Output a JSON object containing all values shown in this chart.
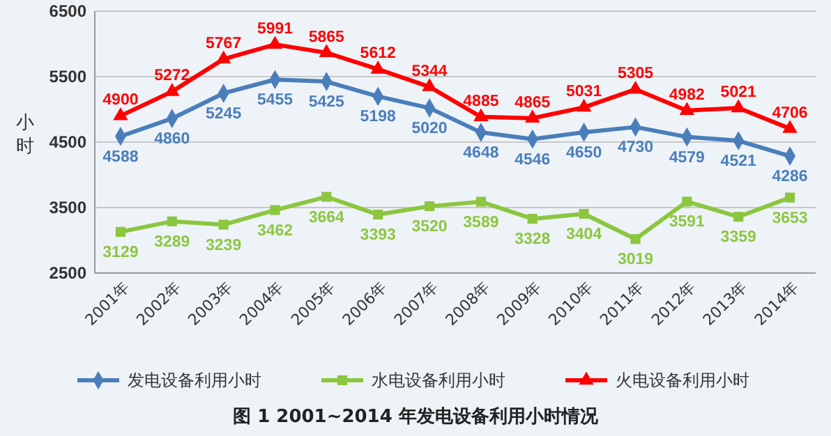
{
  "chart_data": {
    "type": "line",
    "title": "图 1  2001~2014 年发电设备利用小时情况",
    "ylabel": "小时",
    "categories": [
      "2001年",
      "2002年",
      "2003年",
      "2004年",
      "2005年",
      "2006年",
      "2007年",
      "2008年",
      "2009年",
      "2010年",
      "2011年",
      "2012年",
      "2013年",
      "2014年"
    ],
    "series": [
      {
        "name": "发电设备利用小时",
        "color": "#4a7ebb",
        "marker": "diamond",
        "values": [
          4588,
          4860,
          5245,
          5455,
          5425,
          5198,
          5020,
          4648,
          4546,
          4650,
          4730,
          4579,
          4521,
          4286
        ]
      },
      {
        "name": "水电设备利用小时",
        "color": "#8cc63f",
        "marker": "square",
        "values": [
          3129,
          3289,
          3239,
          3462,
          3664,
          3393,
          3520,
          3589,
          3328,
          3404,
          3019,
          3591,
          3359,
          3653
        ]
      },
      {
        "name": "火电设备利用小时",
        "color": "#ff0000",
        "marker": "triangle",
        "values": [
          4900,
          5272,
          5767,
          5991,
          5865,
          5612,
          5344,
          4885,
          4865,
          5031,
          5305,
          4982,
          5021,
          4706
        ]
      }
    ],
    "ylim": [
      2500,
      6500
    ],
    "yticks": [
      2500,
      3500,
      4500,
      5500,
      6500
    ],
    "grid": "y",
    "legend": "bottom",
    "data_labels": true
  }
}
